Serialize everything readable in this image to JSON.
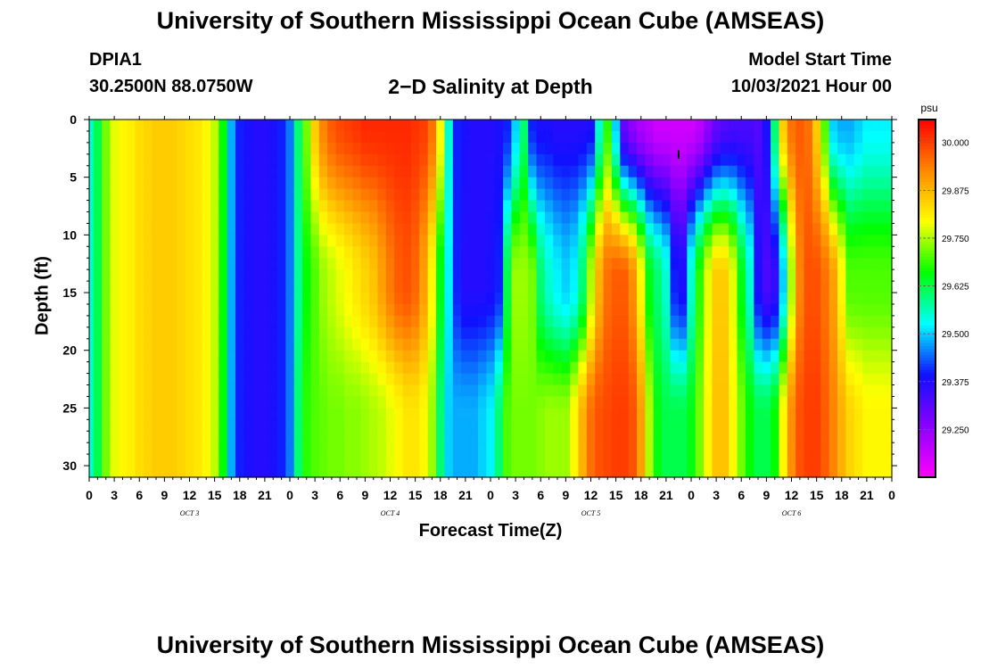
{
  "header": {
    "title": "University of Southern Mississippi Ocean Cube (AMSEAS)",
    "station_id": "DPIA1",
    "coordinates": "30.2500N  88.0750W",
    "plot_title": "2−D Salinity at Depth",
    "model_start_label": "Model Start Time",
    "model_start_value": "10/03/2021 Hour 00"
  },
  "footer": {
    "title": "University of Southern Mississippi Ocean Cube (AMSEAS)"
  },
  "chart_data": {
    "type": "heatmap",
    "title": "2−D Salinity at Depth",
    "xlabel": "Forecast Time(Z)",
    "ylabel": "Depth (ft)",
    "x_ticks": [
      "0",
      "3",
      "6",
      "9",
      "12",
      "15",
      "18",
      "21",
      "0",
      "3",
      "6",
      "9",
      "12",
      "15",
      "18",
      "21",
      "0",
      "3",
      "6",
      "9",
      "12",
      "15",
      "18",
      "21",
      "0",
      "3",
      "6",
      "9",
      "12",
      "15",
      "18",
      "21",
      "0"
    ],
    "x_range_hours": [
      0,
      96
    ],
    "day_labels": [
      {
        "label": "OCT 3",
        "hour": 12
      },
      {
        "label": "OCT 4",
        "hour": 36
      },
      {
        "label": "OCT 5",
        "hour": 60
      },
      {
        "label": "OCT 6",
        "hour": 84
      }
    ],
    "y_ticks": [
      0,
      5,
      10,
      15,
      20,
      25,
      30
    ],
    "y_range_ft": [
      0,
      31
    ],
    "y_inverted": true,
    "colorbar": {
      "unit": "psu",
      "ticks": [
        "30.000",
        "29.875",
        "29.750",
        "29.625",
        "29.500",
        "29.375",
        "29.250"
      ],
      "tick_values": [
        30.0,
        29.875,
        29.75,
        29.625,
        29.5,
        29.375,
        29.25
      ],
      "range": [
        29.125,
        30.06
      ],
      "colormap": [
        "#ff00ff",
        "#8b00ff",
        "#1010ff",
        "#00ffff",
        "#00ff00",
        "#ffff00",
        "#ff8800",
        "#ff0000"
      ]
    },
    "annotation": {
      "label": "I",
      "hour": 70.5,
      "depth_ft": 3
    },
    "time_hours": [
      0,
      1,
      2,
      3,
      4,
      5,
      6,
      7,
      8,
      9,
      10,
      11,
      12,
      13,
      14,
      15,
      16,
      17,
      18,
      19,
      20,
      21,
      22,
      23,
      24,
      25,
      26,
      27,
      28,
      29,
      30,
      31,
      32,
      33,
      34,
      35,
      36,
      37,
      38,
      39,
      40,
      41,
      42,
      43,
      44,
      45,
      46,
      47,
      48,
      49,
      50,
      51,
      52,
      53,
      54,
      55,
      56,
      57,
      58,
      59,
      60,
      61,
      62,
      63,
      64,
      65,
      66,
      67,
      68,
      69,
      70,
      71,
      72,
      73,
      74,
      75,
      76,
      77,
      78,
      79,
      80,
      81,
      82,
      83,
      84,
      85,
      86,
      87,
      88,
      89,
      90,
      91,
      92,
      93,
      94,
      95,
      96
    ],
    "surface_salinity_psu": [
      29.55,
      29.62,
      29.72,
      29.78,
      29.8,
      29.81,
      29.83,
      29.84,
      29.85,
      29.85,
      29.85,
      29.84,
      29.83,
      29.82,
      29.8,
      29.76,
      29.66,
      29.48,
      29.4,
      29.38,
      29.37,
      29.37,
      29.38,
      29.4,
      29.45,
      29.6,
      29.72,
      29.85,
      29.93,
      29.97,
      29.99,
      30.0,
      30.01,
      30.02,
      30.02,
      30.02,
      30.02,
      30.02,
      30.02,
      30.01,
      30.0,
      29.95,
      29.8,
      29.55,
      29.4,
      29.38,
      29.37,
      29.37,
      29.37,
      29.38,
      29.4,
      29.5,
      29.6,
      29.4,
      29.38,
      29.38,
      29.37,
      29.37,
      29.37,
      29.37,
      29.38,
      29.55,
      29.68,
      29.5,
      29.3,
      29.25,
      29.22,
      29.2,
      29.18,
      29.18,
      29.18,
      29.18,
      29.18,
      29.2,
      29.25,
      29.3,
      29.32,
      29.33,
      29.33,
      29.33,
      29.32,
      29.38,
      29.6,
      29.85,
      29.95,
      29.97,
      29.95,
      29.85,
      29.7,
      29.5,
      29.48,
      29.48,
      29.5,
      29.52,
      29.52,
      29.52,
      29.52
    ],
    "mid_salinity_psu": [
      29.55,
      29.62,
      29.72,
      29.78,
      29.8,
      29.81,
      29.83,
      29.84,
      29.85,
      29.85,
      29.85,
      29.84,
      29.83,
      29.82,
      29.8,
      29.76,
      29.66,
      29.48,
      29.4,
      29.38,
      29.37,
      29.37,
      29.38,
      29.4,
      29.45,
      29.58,
      29.66,
      29.7,
      29.74,
      29.76,
      29.78,
      29.8,
      29.82,
      29.84,
      29.86,
      29.9,
      29.94,
      29.97,
      29.98,
      29.96,
      29.9,
      29.8,
      29.65,
      29.52,
      29.4,
      29.37,
      29.37,
      29.37,
      29.38,
      29.4,
      29.62,
      29.74,
      29.74,
      29.72,
      29.6,
      29.55,
      29.52,
      29.5,
      29.52,
      29.6,
      29.75,
      29.88,
      29.95,
      29.97,
      29.97,
      29.92,
      29.8,
      29.65,
      29.6,
      29.55,
      29.4,
      29.38,
      29.55,
      29.68,
      29.78,
      29.85,
      29.85,
      29.78,
      29.65,
      29.55,
      29.38,
      29.33,
      29.35,
      29.5,
      29.75,
      29.93,
      29.98,
      29.98,
      29.95,
      29.9,
      29.8,
      29.7,
      29.7,
      29.7,
      29.7,
      29.7,
      29.7
    ],
    "deep_salinity_psu": [
      29.55,
      29.62,
      29.72,
      29.78,
      29.8,
      29.81,
      29.83,
      29.84,
      29.85,
      29.85,
      29.85,
      29.84,
      29.83,
      29.82,
      29.8,
      29.76,
      29.66,
      29.48,
      29.4,
      29.38,
      29.37,
      29.37,
      29.38,
      29.4,
      29.45,
      29.6,
      29.68,
      29.7,
      29.71,
      29.72,
      29.72,
      29.73,
      29.73,
      29.74,
      29.75,
      29.76,
      29.78,
      29.8,
      29.82,
      29.82,
      29.8,
      29.74,
      29.6,
      29.5,
      29.48,
      29.48,
      29.48,
      29.5,
      29.52,
      29.6,
      29.7,
      29.72,
      29.72,
      29.72,
      29.73,
      29.74,
      29.74,
      29.74,
      29.8,
      29.88,
      29.95,
      29.98,
      29.99,
      30.0,
      30.0,
      29.98,
      29.9,
      29.75,
      29.65,
      29.62,
      29.62,
      29.62,
      29.65,
      29.72,
      29.8,
      29.86,
      29.86,
      29.8,
      29.72,
      29.66,
      29.62,
      29.62,
      29.66,
      29.8,
      29.92,
      29.98,
      30.0,
      30.0,
      29.97,
      29.93,
      29.88,
      29.84,
      29.82,
      29.8,
      29.8,
      29.8,
      29.8
    ]
  }
}
